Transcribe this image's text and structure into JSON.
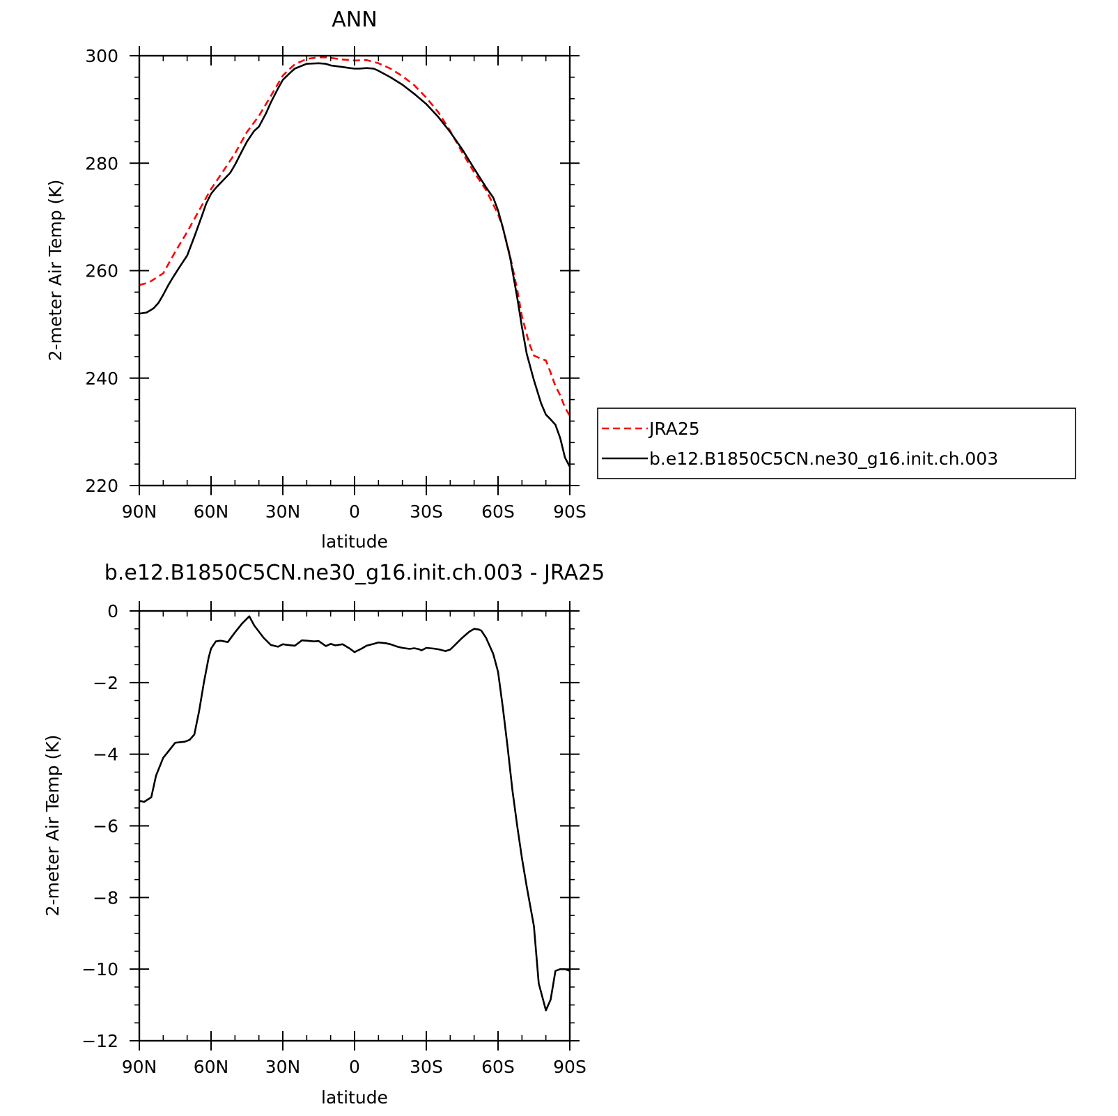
{
  "chart_data": [
    {
      "type": "line",
      "title": "ANN",
      "xlabel": "latitude",
      "ylabel": "2-meter Air Temp (K)",
      "xlim": [
        90,
        -90
      ],
      "ylim": [
        220,
        300
      ],
      "x_ticks": [
        {
          "value": 90,
          "label": "90N"
        },
        {
          "value": 60,
          "label": "60N"
        },
        {
          "value": 30,
          "label": "30N"
        },
        {
          "value": 0,
          "label": "0"
        },
        {
          "value": -30,
          "label": "30S"
        },
        {
          "value": -60,
          "label": "60S"
        },
        {
          "value": -90,
          "label": "90S"
        }
      ],
      "y_ticks": [
        {
          "value": 300,
          "label": "300"
        },
        {
          "value": 280,
          "label": "280"
        },
        {
          "value": 260,
          "label": "260"
        },
        {
          "value": 240,
          "label": "240"
        },
        {
          "value": 220,
          "label": "220"
        }
      ],
      "grid": false,
      "legend": {
        "placement": "right of plot"
      },
      "series": [
        {
          "name": "JRA25",
          "color": "#ff0000",
          "dash": "dashed",
          "x": [
            90,
            86,
            80,
            75,
            70,
            65,
            62,
            60,
            56,
            50,
            45,
            40,
            35,
            30,
            27,
            25,
            20,
            15,
            12,
            10,
            5,
            0,
            -5,
            -10,
            -15,
            -20,
            -25,
            -30,
            -35,
            -40,
            -45,
            -50,
            -55,
            -60,
            -62,
            -65,
            -68,
            -70,
            -73,
            -75,
            -78,
            -80,
            -82,
            -84,
            -86,
            -88,
            -90
          ],
          "y": [
            257.3,
            257.8,
            259.5,
            263.5,
            267.2,
            271.2,
            273.6,
            275.2,
            277.8,
            281.8,
            285.8,
            288.8,
            292.5,
            296.3,
            297.6,
            298.4,
            299.4,
            299.7,
            299.7,
            299.6,
            299.3,
            299.1,
            299.2,
            298.6,
            297.6,
            296.2,
            294.5,
            292.2,
            289.5,
            286.0,
            282.0,
            278.3,
            275.0,
            270.5,
            268.0,
            262.8,
            256.5,
            251.5,
            246.5,
            244.2,
            243.6,
            243.3,
            241.0,
            238.5,
            236.8,
            234.5,
            233.0
          ]
        },
        {
          "name": "b.e12.B1850C5CN.ne30_g16.init.ch.003",
          "color": "#000000",
          "dash": "solid",
          "x": [
            90,
            87,
            84,
            82,
            80,
            78,
            76,
            73,
            70,
            67,
            64,
            62,
            60,
            58,
            55,
            52,
            50,
            47,
            45,
            42,
            40,
            37,
            35,
            32,
            30,
            27,
            25,
            20,
            15,
            12,
            10,
            5,
            2,
            0,
            -2,
            -5,
            -8,
            -10,
            -15,
            -20,
            -25,
            -30,
            -35,
            -40,
            -45,
            -50,
            -55,
            -58,
            -60,
            -62,
            -65,
            -68,
            -70,
            -72,
            -75,
            -78,
            -80,
            -82,
            -84,
            -86,
            -88,
            -90
          ],
          "y": [
            252.0,
            252.2,
            253.0,
            254.0,
            255.5,
            257.2,
            258.7,
            260.8,
            262.8,
            266.3,
            270.0,
            272.5,
            274.3,
            275.4,
            276.8,
            278.2,
            279.7,
            282.3,
            284.0,
            286.0,
            286.8,
            289.3,
            291.3,
            293.9,
            295.5,
            296.8,
            297.6,
            298.5,
            298.6,
            298.5,
            298.2,
            297.9,
            297.7,
            297.6,
            297.6,
            297.7,
            297.6,
            297.2,
            296.0,
            294.6,
            292.9,
            291.0,
            288.6,
            285.8,
            282.6,
            279.0,
            275.5,
            273.6,
            271.2,
            268.0,
            262.5,
            255.0,
            249.5,
            244.5,
            239.6,
            235.3,
            233.2,
            232.3,
            231.3,
            228.8,
            225.2,
            223.5
          ]
        }
      ]
    },
    {
      "type": "line",
      "title": "b.e12.B1850C5CN.ne30_g16.init.ch.003 - JRA25",
      "xlabel": "latitude",
      "ylabel": "2-meter Air Temp (K)",
      "xlim": [
        90,
        -90
      ],
      "ylim": [
        -12,
        0
      ],
      "x_ticks": [
        {
          "value": 90,
          "label": "90N"
        },
        {
          "value": 60,
          "label": "60N"
        },
        {
          "value": 30,
          "label": "30N"
        },
        {
          "value": 0,
          "label": "0"
        },
        {
          "value": -30,
          "label": "30S"
        },
        {
          "value": -60,
          "label": "60S"
        },
        {
          "value": -90,
          "label": "90S"
        }
      ],
      "y_ticks": [
        {
          "value": 0,
          "label": "0"
        },
        {
          "value": -2,
          "label": "−2"
        },
        {
          "value": -4,
          "label": "−4"
        },
        {
          "value": -6,
          "label": "−6"
        },
        {
          "value": -8,
          "label": "−8"
        },
        {
          "value": -10,
          "label": "−10"
        },
        {
          "value": -12,
          "label": "−12"
        }
      ],
      "grid": false,
      "series": [
        {
          "color": "#000000",
          "dash": "solid",
          "x": [
            90,
            88,
            85,
            83,
            80,
            77,
            75,
            71,
            69,
            67,
            65,
            63,
            61,
            60,
            58,
            56,
            53,
            50,
            47,
            44,
            42,
            38,
            35,
            32,
            30,
            28,
            25,
            22,
            20,
            17,
            15,
            12,
            10,
            8,
            5,
            2,
            0,
            -3,
            -5,
            -8,
            -10,
            -13,
            -15,
            -18,
            -20,
            -23,
            -25,
            -27,
            -28,
            -30,
            -33,
            -35,
            -38,
            -40,
            -42,
            -45,
            -48,
            -50,
            -52,
            -53,
            -55,
            -58,
            -60,
            -62,
            -64,
            -66,
            -68,
            -70,
            -72,
            -75,
            -77,
            -80,
            -82,
            -84,
            -86,
            -88,
            -90
          ],
          "y": [
            -5.3,
            -5.33,
            -5.2,
            -4.6,
            -4.1,
            -3.85,
            -3.68,
            -3.65,
            -3.6,
            -3.45,
            -2.8,
            -2.0,
            -1.3,
            -1.05,
            -0.85,
            -0.83,
            -0.87,
            -0.6,
            -0.35,
            -0.15,
            -0.4,
            -0.75,
            -0.95,
            -1.0,
            -0.93,
            -0.95,
            -0.97,
            -0.82,
            -0.83,
            -0.85,
            -0.84,
            -0.98,
            -0.92,
            -0.96,
            -0.93,
            -1.05,
            -1.15,
            -1.05,
            -0.97,
            -0.92,
            -0.88,
            -0.9,
            -0.93,
            -1.0,
            -1.03,
            -1.06,
            -1.04,
            -1.07,
            -1.1,
            -1.03,
            -1.05,
            -1.07,
            -1.12,
            -1.08,
            -0.95,
            -0.75,
            -0.58,
            -0.5,
            -0.52,
            -0.55,
            -0.75,
            -1.2,
            -1.7,
            -2.7,
            -3.8,
            -5.0,
            -6.0,
            -6.9,
            -7.7,
            -8.8,
            -10.4,
            -11.15,
            -10.85,
            -10.05,
            -10.0,
            -10.0,
            -10.05
          ]
        }
      ]
    }
  ]
}
